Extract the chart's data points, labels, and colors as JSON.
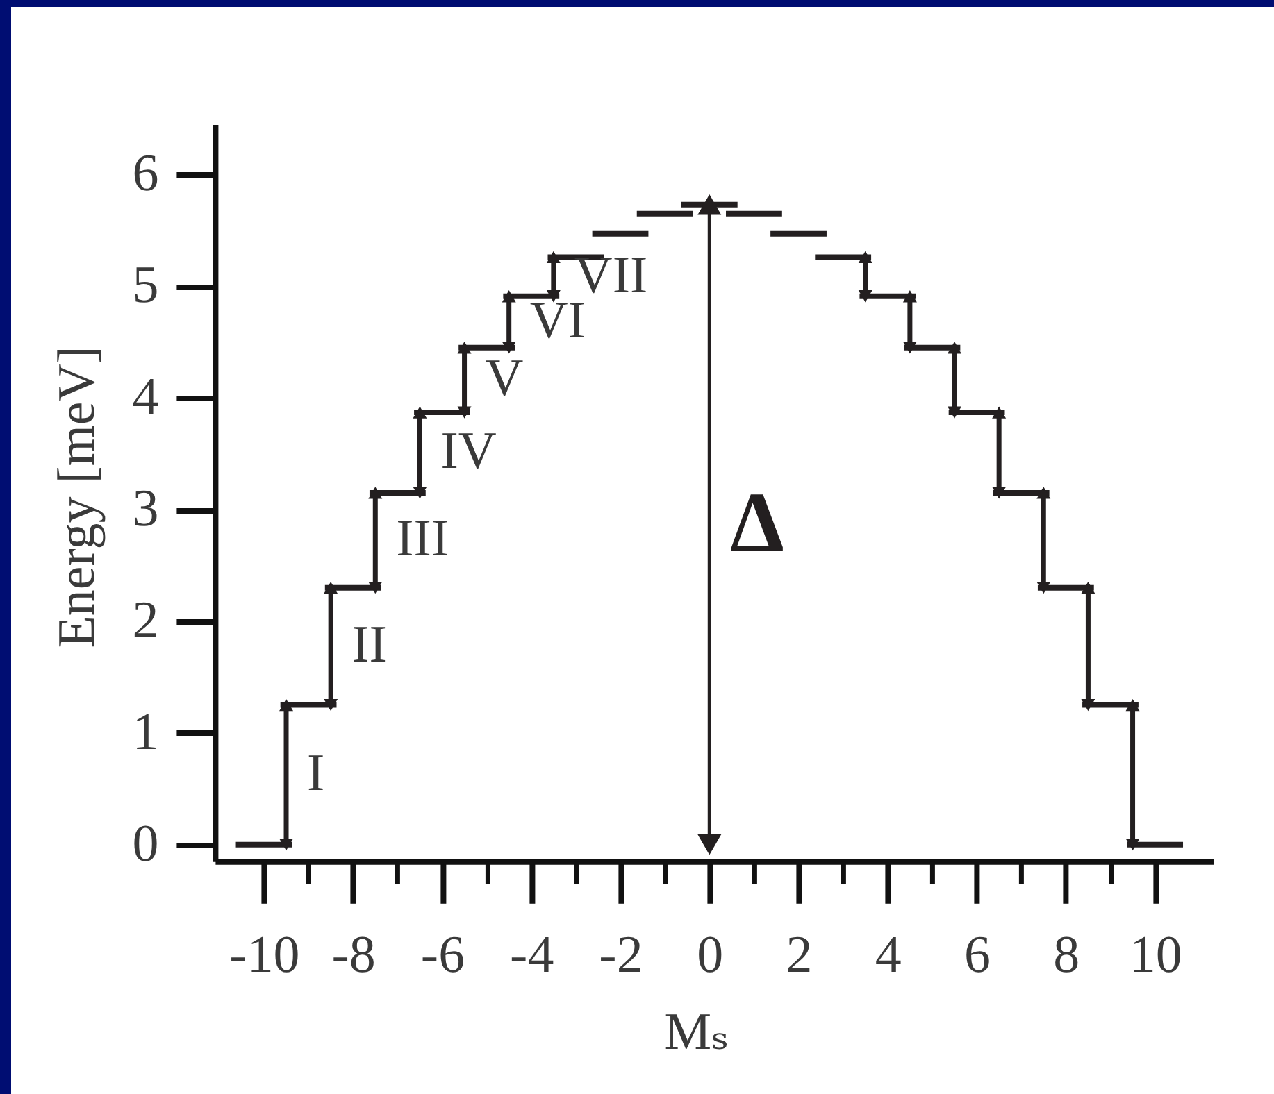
{
  "chart_data": {
    "type": "line",
    "xlabel": "Mₛ",
    "ylabel": "Energy [meV]",
    "xlim": [
      -11.1,
      11.3
    ],
    "xticks": [
      -10,
      {
        "value": -9,
        "label": null
      },
      -8,
      {
        "value": -7,
        "label": null
      },
      -6,
      {
        "value": -5,
        "label": null
      },
      -4,
      {
        "value": -3,
        "label": null
      },
      -2,
      {
        "value": -1,
        "label": null
      },
      0,
      {
        "value": 1,
        "label": null
      },
      2,
      {
        "value": 3,
        "label": null
      },
      4,
      {
        "value": 5,
        "label": null
      },
      6,
      {
        "value": 7,
        "label": null
      },
      8,
      {
        "value": 9,
        "label": null
      },
      10
    ],
    "ylim": [
      -0.15,
      6.45
    ],
    "yticks": [
      0,
      1,
      2,
      3,
      4,
      5,
      6
    ],
    "annotations": [
      "I",
      "II",
      "III",
      "IV",
      "V",
      "VI",
      "VII",
      "Δ"
    ],
    "series": [
      {
        "color": "#231f20",
        "x": [
          -10.63,
          -9.37
        ],
        "values": [
          0,
          0
        ]
      },
      {
        "color": "#231f20",
        "x": [
          -9.63,
          -8.37
        ],
        "values": [
          1.25,
          1.25
        ]
      },
      {
        "color": "#231f20",
        "x": [
          -8.63,
          -7.37
        ],
        "values": [
          2.3,
          2.3
        ]
      },
      {
        "color": "#231f20",
        "x": [
          -7.63,
          -6.37
        ],
        "values": [
          3.15,
          3.15
        ]
      },
      {
        "color": "#231f20",
        "x": [
          -6.63,
          -5.37
        ],
        "values": [
          3.87,
          3.87
        ]
      },
      {
        "color": "#231f20",
        "x": [
          -5.63,
          -4.37
        ],
        "values": [
          4.45,
          4.45
        ]
      },
      {
        "color": "#231f20",
        "x": [
          -4.63,
          -3.37
        ],
        "values": [
          4.91,
          4.91
        ]
      },
      {
        "color": "#231f20",
        "x": [
          -3.63,
          -2.37
        ],
        "values": [
          5.26,
          5.26
        ]
      },
      {
        "color": "#231f20",
        "x": [
          -2.63,
          -1.37
        ],
        "values": [
          5.47,
          5.47
        ]
      },
      {
        "color": "#231f20",
        "x": [
          -1.63,
          -0.37
        ],
        "values": [
          5.65,
          5.65
        ]
      },
      {
        "color": "#231f20",
        "x": [
          -0.63,
          0.63
        ],
        "values": [
          5.73,
          5.73
        ]
      },
      {
        "color": "#231f20",
        "x": [
          0.37,
          1.63
        ],
        "values": [
          5.65,
          5.65
        ]
      },
      {
        "color": "#231f20",
        "x": [
          1.37,
          2.63
        ],
        "values": [
          5.47,
          5.47
        ]
      },
      {
        "color": "#231f20",
        "x": [
          2.37,
          3.63
        ],
        "values": [
          5.26,
          5.26
        ]
      },
      {
        "color": "#231f20",
        "x": [
          3.37,
          4.63
        ],
        "values": [
          4.91,
          4.91
        ]
      },
      {
        "color": "#231f20",
        "x": [
          4.37,
          5.63
        ],
        "values": [
          4.45,
          4.45
        ]
      },
      {
        "color": "#231f20",
        "x": [
          5.37,
          6.63
        ],
        "values": [
          3.87,
          3.87
        ]
      },
      {
        "color": "#231f20",
        "x": [
          6.37,
          7.63
        ],
        "values": [
          3.15,
          3.15
        ]
      },
      {
        "color": "#231f20",
        "x": [
          7.37,
          8.63
        ],
        "values": [
          2.3,
          2.3
        ]
      },
      {
        "color": "#231f20",
        "x": [
          8.37,
          9.63
        ],
        "values": [
          1.25,
          1.25
        ]
      },
      {
        "color": "#231f20",
        "x": [
          9.37,
          10.63
        ],
        "values": [
          0,
          0
        ]
      },
      {
        "color": "#231f20",
        "marker": "triangle",
        "x": [
          -9.5,
          -9.5
        ],
        "values": [
          0,
          1.25
        ]
      },
      {
        "color": "#231f20",
        "marker": "triangle",
        "x": [
          -8.5,
          -8.5
        ],
        "values": [
          1.25,
          2.3
        ]
      },
      {
        "color": "#231f20",
        "marker": "triangle",
        "x": [
          -7.5,
          -7.5
        ],
        "values": [
          2.3,
          3.15
        ]
      },
      {
        "color": "#231f20",
        "marker": "triangle",
        "x": [
          -6.5,
          -6.5
        ],
        "values": [
          3.15,
          3.87
        ]
      },
      {
        "color": "#231f20",
        "marker": "triangle",
        "x": [
          -5.5,
          -5.5
        ],
        "values": [
          3.87,
          4.45
        ]
      },
      {
        "color": "#231f20",
        "marker": "triangle",
        "x": [
          -4.5,
          -4.5
        ],
        "values": [
          4.45,
          4.91
        ]
      },
      {
        "color": "#231f20",
        "marker": "triangle",
        "x": [
          -3.5,
          -3.5
        ],
        "values": [
          4.91,
          5.26
        ]
      },
      {
        "color": "#231f20",
        "marker": "triangle",
        "x": [
          0,
          0
        ],
        "values": [
          0,
          5.73
        ]
      },
      {
        "color": "#231f20",
        "marker": "triangle",
        "x": [
          3.5,
          3.5
        ],
        "values": [
          5.26,
          4.91
        ]
      },
      {
        "color": "#231f20",
        "marker": "triangle",
        "x": [
          4.5,
          4.5
        ],
        "values": [
          4.91,
          4.45
        ]
      },
      {
        "color": "#231f20",
        "marker": "triangle",
        "x": [
          5.5,
          5.5
        ],
        "values": [
          4.45,
          3.87
        ]
      },
      {
        "color": "#231f20",
        "marker": "triangle",
        "x": [
          6.5,
          6.5
        ],
        "values": [
          3.87,
          3.15
        ]
      },
      {
        "color": "#231f20",
        "marker": "triangle",
        "x": [
          7.5,
          7.5
        ],
        "values": [
          3.15,
          2.3
        ]
      },
      {
        "color": "#231f20",
        "marker": "triangle",
        "x": [
          8.5,
          8.5
        ],
        "values": [
          2.3,
          1.25
        ]
      },
      {
        "color": "#231f20",
        "marker": "triangle",
        "x": [
          9.5,
          9.5
        ],
        "values": [
          1.25,
          0
        ]
      }
    ]
  }
}
